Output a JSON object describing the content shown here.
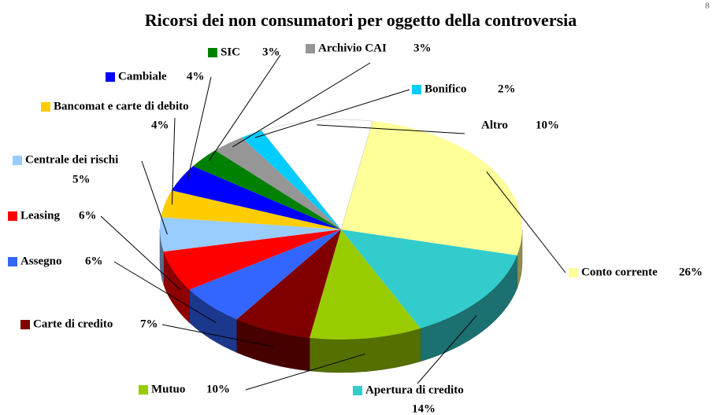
{
  "page_number": "8",
  "chart_data": {
    "type": "pie3d",
    "title": "Ricorsi dei non consumatori per oggetto della controversia",
    "categories": [
      "Conto corrente",
      "Apertura di credito",
      "Mutuo",
      "Carte di credito",
      "Assegno",
      "Leasing",
      "Centrale dei rischi",
      "Bancomat e carte di debito",
      "Cambiale",
      "SIC",
      "Archivio CAI",
      "Bonifico",
      "Altro"
    ],
    "values": [
      26,
      14,
      10,
      7,
      6,
      6,
      5,
      4,
      4,
      3,
      3,
      2,
      10
    ],
    "value_labels": [
      "26%",
      "14%",
      "10%",
      "7%",
      "6%",
      "6%",
      "5%",
      "4%",
      "4%",
      "3%",
      "3%",
      "2%",
      "10%"
    ],
    "colors": [
      "#ffff99",
      "#33cccc",
      "#99cc00",
      "#800000",
      "#3366ff",
      "#ff0000",
      "#99ccff",
      "#ffcc00",
      "#0000ff",
      "#008000",
      "#969696",
      "#00ccff",
      "#ffffff"
    ]
  }
}
